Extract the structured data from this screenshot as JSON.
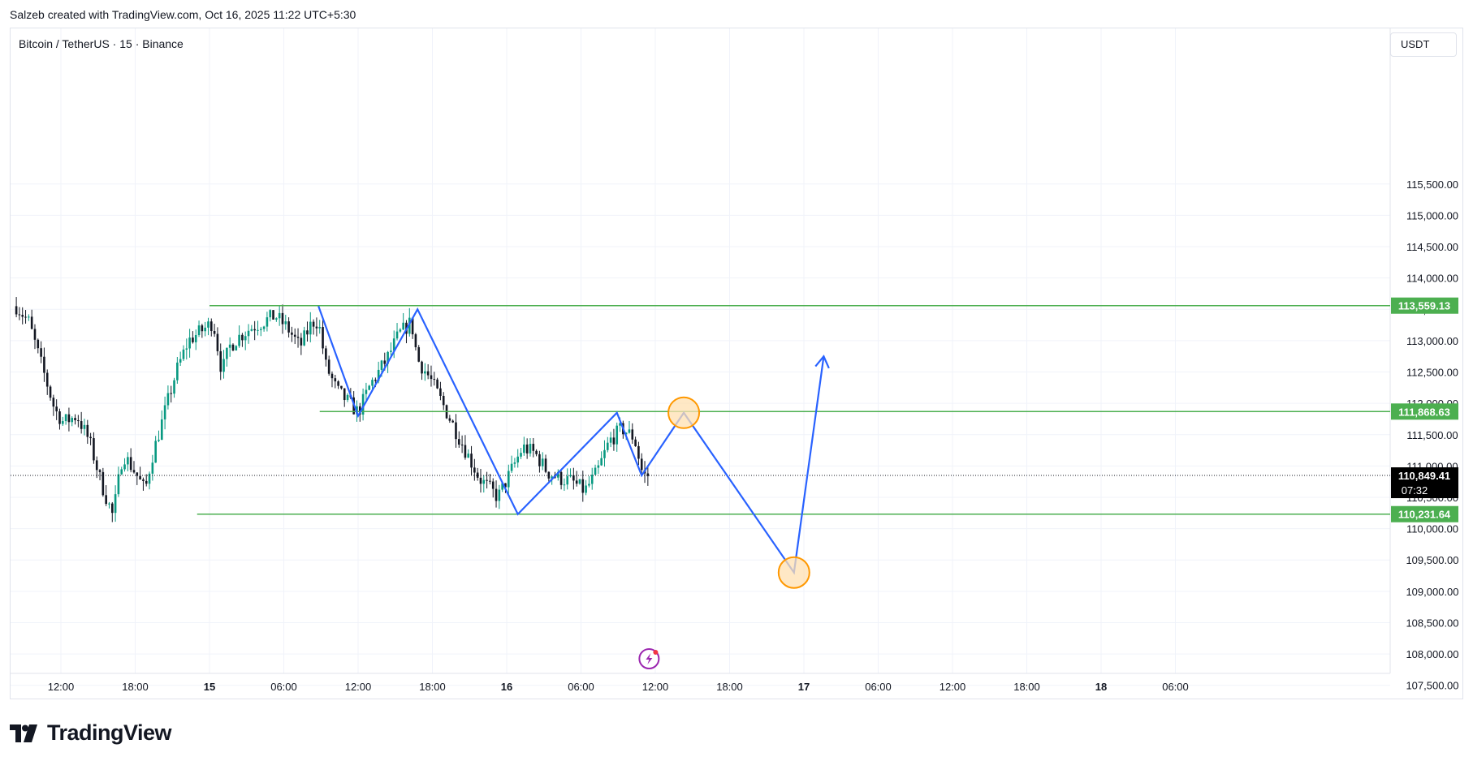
{
  "header": {
    "credit": "Salzeb created with TradingView.com, Oct 16, 2025 11:22 UTC+5:30",
    "symbol": "Bitcoin / TetherUS · 15 · Binance",
    "currency": "USDT"
  },
  "footer": {
    "brand": "TradingView",
    "logo_icon": "tradingview-logo-icon"
  },
  "colors": {
    "up": "#089981",
    "down": "#131722",
    "level": "#4caf50",
    "projection": "#2962ff",
    "highlight_fill": "#ffe0b2",
    "highlight_stroke": "#ff9800",
    "grid": "#f0f3fa",
    "axis_text": "#131722"
  },
  "chart_data": {
    "type": "candlestick",
    "ylim": [
      107200,
      116100
    ],
    "y_ticks": [
      107500,
      108000,
      108500,
      109000,
      109500,
      110000,
      110500,
      111000,
      111500,
      112000,
      112500,
      113000,
      113500,
      114000,
      114500,
      115000,
      115500
    ],
    "y_tick_labels": [
      "107,500.00",
      "108,000.00",
      "108,500.00",
      "109,000.00",
      "109,500.00",
      "110,000.00",
      "110,500.00",
      "111,000.00",
      "111,500.00",
      "112,000.00",
      "112,500.00",
      "113,000.00",
      "113,500.00",
      "114,000.00",
      "114,500.00",
      "115,000.00",
      "115,500.00"
    ],
    "x_ticks": [
      {
        "label": "12:00",
        "t": 0,
        "bold": false
      },
      {
        "label": "18:00",
        "t": 6,
        "bold": false
      },
      {
        "label": "15",
        "t": 12,
        "bold": true
      },
      {
        "label": "06:00",
        "t": 18,
        "bold": false
      },
      {
        "label": "12:00",
        "t": 24,
        "bold": false
      },
      {
        "label": "18:00",
        "t": 30,
        "bold": false
      },
      {
        "label": "16",
        "t": 36,
        "bold": true
      },
      {
        "label": "06:00",
        "t": 42,
        "bold": false
      },
      {
        "label": "12:00",
        "t": 48,
        "bold": false
      },
      {
        "label": "18:00",
        "t": 54,
        "bold": false
      },
      {
        "label": "17",
        "t": 60,
        "bold": true
      },
      {
        "label": "06:00",
        "t": 66,
        "bold": false
      },
      {
        "label": "12:00",
        "t": 72,
        "bold": false
      },
      {
        "label": "18:00",
        "t": 78,
        "bold": false
      },
      {
        "label": "18",
        "t": 84,
        "bold": true
      },
      {
        "label": "06:00",
        "t": 90,
        "bold": false
      }
    ],
    "x_range_hours": [
      -3.6,
      96.5
    ],
    "price_path": [
      [
        -3.6,
        113550
      ],
      [
        -2.6,
        113300
      ],
      [
        -1.4,
        112500
      ],
      [
        -0.5,
        111900
      ],
      [
        0.2,
        111700
      ],
      [
        1.3,
        111800
      ],
      [
        2.3,
        111400
      ],
      [
        3.3,
        110700
      ],
      [
        4.2,
        110200
      ],
      [
        5.0,
        111200
      ],
      [
        6.0,
        110900
      ],
      [
        6.8,
        110600
      ],
      [
        7.3,
        111100
      ],
      [
        8.3,
        111800
      ],
      [
        9.3,
        112500
      ],
      [
        10.3,
        113000
      ],
      [
        11.3,
        113150
      ],
      [
        12.3,
        113300
      ],
      [
        13.0,
        112500
      ],
      [
        13.6,
        112900
      ],
      [
        14.3,
        113050
      ],
      [
        15.3,
        113200
      ],
      [
        16.3,
        113300
      ],
      [
        17.3,
        113400
      ],
      [
        18.3,
        113200
      ],
      [
        19.3,
        112900
      ],
      [
        20.3,
        113300
      ],
      [
        20.8,
        113300
      ],
      [
        21.4,
        112600
      ],
      [
        22.3,
        112200
      ],
      [
        23.3,
        112000
      ],
      [
        24.0,
        111850
      ],
      [
        25.0,
        112300
      ],
      [
        26.3,
        112700
      ],
      [
        27.3,
        113100
      ],
      [
        28.3,
        113300
      ],
      [
        28.8,
        112700
      ],
      [
        29.8,
        112400
      ],
      [
        30.8,
        112000
      ],
      [
        31.8,
        111600
      ],
      [
        32.8,
        111200
      ],
      [
        33.8,
        110800
      ],
      [
        35.3,
        110500
      ],
      [
        36.3,
        110900
      ],
      [
        37.3,
        111300
      ],
      [
        38.3,
        111200
      ],
      [
        39.3,
        110900
      ],
      [
        40.3,
        110800
      ],
      [
        41.3,
        110750
      ],
      [
        42.3,
        110600
      ],
      [
        43.3,
        110900
      ],
      [
        44.3,
        111400
      ],
      [
        45.3,
        111600
      ],
      [
        46.3,
        111450
      ],
      [
        47.0,
        110850
      ],
      [
        47.6,
        110849
      ]
    ],
    "candle_interval_hours": 0.25,
    "levels": [
      {
        "price": 113559.13,
        "label": "113,559.13",
        "start_t": 12
      },
      {
        "price": 111868.63,
        "label": "111,868.63",
        "start_t": 20.9
      },
      {
        "price": 110231.64,
        "label": "110,231.64",
        "start_t": 11
      }
    ],
    "current_price": {
      "price": 110849.41,
      "label": "110,849.41",
      "countdown": "07:32"
    },
    "pattern": [
      [
        20.8,
        113550
      ],
      [
        24.0,
        111800
      ],
      [
        28.8,
        113500
      ],
      [
        36.9,
        110231
      ],
      [
        44.9,
        111850
      ],
      [
        46.9,
        110849
      ],
      [
        50.3,
        111850
      ],
      [
        59.2,
        109300
      ],
      [
        61.6,
        112750
      ]
    ],
    "highlights": [
      [
        50.3,
        111850
      ],
      [
        59.2,
        109300
      ]
    ],
    "event_marker": {
      "t": 47.5,
      "icon": "lightning-event-icon"
    }
  }
}
